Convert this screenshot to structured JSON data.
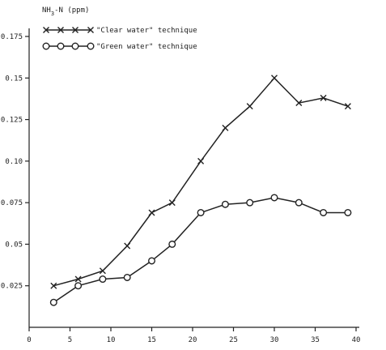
{
  "chart_data": {
    "type": "line",
    "title": "",
    "xlabel": "",
    "ylabel": "NH3-N (ppm)",
    "xlim": [
      0,
      40
    ],
    "ylim": [
      0,
      0.175
    ],
    "x_ticks": [
      "0",
      "5",
      "10",
      "15",
      "20",
      "25",
      "30",
      "35",
      "40"
    ],
    "y_ticks": [
      "0.025",
      "0.05",
      "0.075",
      "0.10",
      "0.125",
      "0.15",
      "0.175"
    ],
    "grid": false,
    "legend_position": "top-left",
    "series": [
      {
        "name": "\"Clear water\" technique",
        "marker": "x",
        "x": [
          3,
          6,
          9,
          12,
          15,
          17.5,
          21,
          24,
          27,
          30,
          33,
          36,
          39
        ],
        "y": [
          0.025,
          0.029,
          0.034,
          0.049,
          0.069,
          0.075,
          0.1,
          0.12,
          0.133,
          0.15,
          0.135,
          0.138,
          0.133
        ]
      },
      {
        "name": "\"Green water\" technique",
        "marker": "o",
        "x": [
          3,
          6,
          9,
          12,
          15,
          17.5,
          21,
          24,
          27,
          30,
          33,
          36,
          39
        ],
        "y": [
          0.015,
          0.025,
          0.029,
          0.03,
          0.04,
          0.05,
          0.069,
          0.074,
          0.075,
          0.078,
          0.075,
          0.069,
          0.069
        ]
      }
    ]
  }
}
